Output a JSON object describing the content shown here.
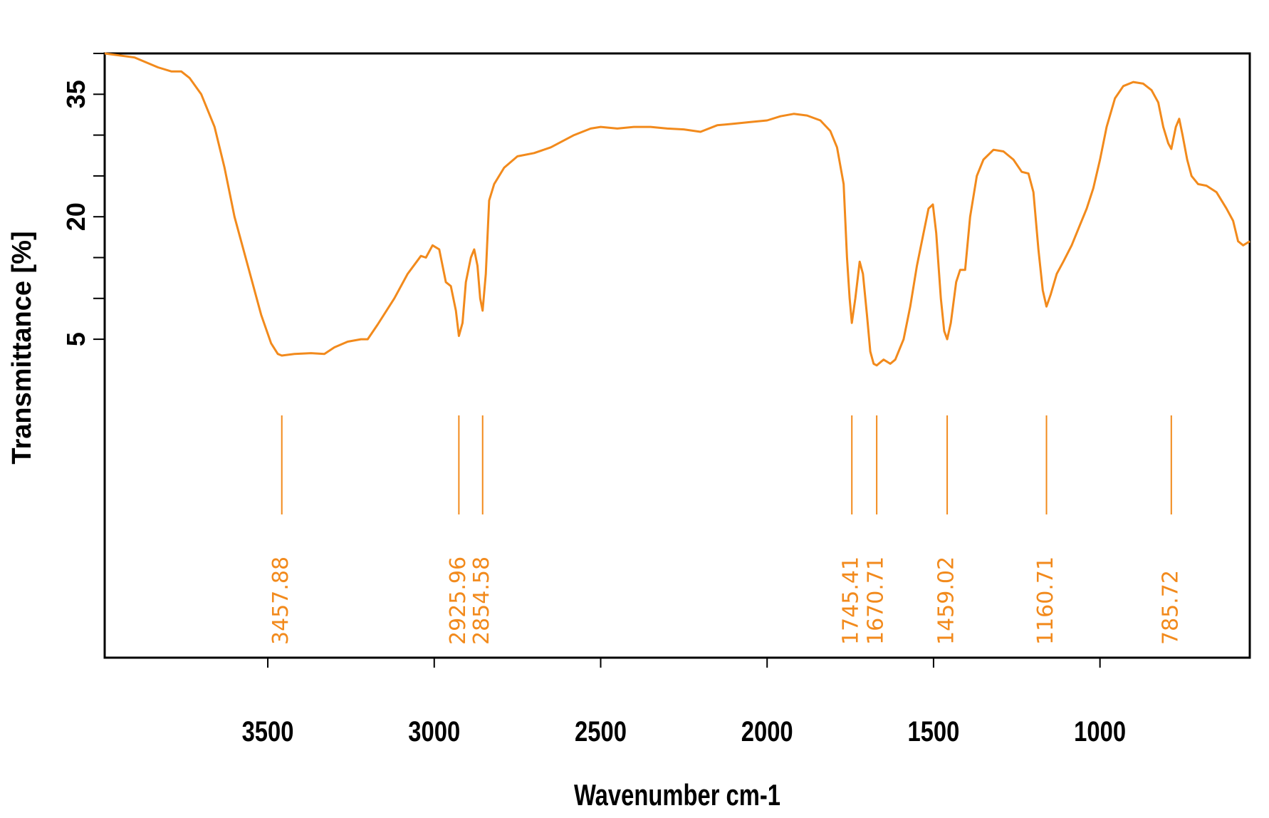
{
  "chart_data": {
    "type": "line",
    "title": "",
    "xlabel": "Wavenumber cm-1",
    "ylabel": "Transmittance [%]",
    "xlim": [
      3990,
      550
    ],
    "ylim": [
      -34,
      40
    ],
    "x_reversed": true,
    "grid": false,
    "line_color": "#f28a1c",
    "x_ticks": [
      {
        "value": 3500,
        "label": "3500"
      },
      {
        "value": 3000,
        "label": "3000"
      },
      {
        "value": 2500,
        "label": "2500"
      },
      {
        "value": 2000,
        "label": "2000"
      },
      {
        "value": 1500,
        "label": "1500"
      },
      {
        "value": 1000,
        "label": "1000"
      }
    ],
    "y_ticks": [
      {
        "value": 5,
        "label": "5"
      },
      {
        "value": 10,
        "label": ""
      },
      {
        "value": 15,
        "label": ""
      },
      {
        "value": 20,
        "label": "20"
      },
      {
        "value": 25,
        "label": ""
      },
      {
        "value": 30,
        "label": ""
      },
      {
        "value": 35,
        "label": "35"
      },
      {
        "value": 40,
        "label": ""
      }
    ],
    "series": [
      {
        "name": "",
        "points": [
          [
            3990,
            40.0
          ],
          [
            3900,
            39.5
          ],
          [
            3830,
            38.3
          ],
          [
            3790,
            37.8
          ],
          [
            3760,
            37.8
          ],
          [
            3735,
            37.0
          ],
          [
            3700,
            35.0
          ],
          [
            3660,
            31.0
          ],
          [
            3630,
            26.0
          ],
          [
            3600,
            20.0
          ],
          [
            3560,
            14.0
          ],
          [
            3520,
            8.0
          ],
          [
            3490,
            4.5
          ],
          [
            3470,
            3.2
          ],
          [
            3457.88,
            3.0
          ],
          [
            3420,
            3.2
          ],
          [
            3370,
            3.3
          ],
          [
            3330,
            3.2
          ],
          [
            3300,
            4.0
          ],
          [
            3260,
            4.7
          ],
          [
            3220,
            5.0
          ],
          [
            3200,
            5.0
          ],
          [
            3170,
            6.8
          ],
          [
            3120,
            10.0
          ],
          [
            3080,
            13.0
          ],
          [
            3040,
            15.2
          ],
          [
            3025,
            15.0
          ],
          [
            3005,
            16.5
          ],
          [
            2985,
            16.0
          ],
          [
            2965,
            12.0
          ],
          [
            2950,
            11.5
          ],
          [
            2935,
            8.5
          ],
          [
            2925.96,
            5.4
          ],
          [
            2915,
            7.0
          ],
          [
            2905,
            12.0
          ],
          [
            2890,
            15.0
          ],
          [
            2880,
            16.0
          ],
          [
            2870,
            14.0
          ],
          [
            2862,
            10.0
          ],
          [
            2854.58,
            8.5
          ],
          [
            2845,
            13.0
          ],
          [
            2835,
            22.0
          ],
          [
            2820,
            24.0
          ],
          [
            2790,
            26.0
          ],
          [
            2750,
            27.4
          ],
          [
            2700,
            27.8
          ],
          [
            2650,
            28.5
          ],
          [
            2580,
            30.0
          ],
          [
            2530,
            30.8
          ],
          [
            2500,
            31.0
          ],
          [
            2450,
            30.8
          ],
          [
            2400,
            31.0
          ],
          [
            2350,
            31.0
          ],
          [
            2300,
            30.8
          ],
          [
            2250,
            30.7
          ],
          [
            2200,
            30.4
          ],
          [
            2150,
            31.2
          ],
          [
            2100,
            31.4
          ],
          [
            2050,
            31.6
          ],
          [
            2000,
            31.8
          ],
          [
            1960,
            32.3
          ],
          [
            1920,
            32.6
          ],
          [
            1880,
            32.4
          ],
          [
            1840,
            31.8
          ],
          [
            1810,
            30.5
          ],
          [
            1790,
            28.5
          ],
          [
            1770,
            24.0
          ],
          [
            1760,
            15.0
          ],
          [
            1752,
            10.0
          ],
          [
            1745.41,
            7.0
          ],
          [
            1735,
            10.0
          ],
          [
            1722,
            14.5
          ],
          [
            1712,
            13.0
          ],
          [
            1700,
            8.0
          ],
          [
            1690,
            3.5
          ],
          [
            1680,
            2.0
          ],
          [
            1670.71,
            1.8
          ],
          [
            1650,
            2.5
          ],
          [
            1630,
            2.0
          ],
          [
            1615,
            2.5
          ],
          [
            1590,
            5.0
          ],
          [
            1570,
            9.0
          ],
          [
            1550,
            14.0
          ],
          [
            1530,
            18.0
          ],
          [
            1515,
            21.0
          ],
          [
            1502,
            21.5
          ],
          [
            1492,
            18.0
          ],
          [
            1478,
            10.0
          ],
          [
            1468,
            6.0
          ],
          [
            1459.02,
            5.0
          ],
          [
            1448,
            7.0
          ],
          [
            1432,
            12.0
          ],
          [
            1420,
            13.5
          ],
          [
            1405,
            13.5
          ],
          [
            1390,
            20.0
          ],
          [
            1370,
            25.0
          ],
          [
            1350,
            27.0
          ],
          [
            1320,
            28.2
          ],
          [
            1290,
            28.0
          ],
          [
            1260,
            27.0
          ],
          [
            1235,
            25.5
          ],
          [
            1215,
            25.3
          ],
          [
            1200,
            23.0
          ],
          [
            1185,
            16.0
          ],
          [
            1172,
            11.0
          ],
          [
            1160.71,
            9.0
          ],
          [
            1148,
            10.5
          ],
          [
            1130,
            13.0
          ],
          [
            1110,
            14.5
          ],
          [
            1085,
            16.5
          ],
          [
            1060,
            19.0
          ],
          [
            1040,
            21.0
          ],
          [
            1020,
            23.5
          ],
          [
            1000,
            27.0
          ],
          [
            980,
            31.0
          ],
          [
            955,
            34.5
          ],
          [
            930,
            36.0
          ],
          [
            900,
            36.5
          ],
          [
            870,
            36.3
          ],
          [
            845,
            35.5
          ],
          [
            825,
            34.0
          ],
          [
            810,
            31.0
          ],
          [
            795,
            29.0
          ],
          [
            785.72,
            28.3
          ],
          [
            772,
            31.0
          ],
          [
            762,
            32.0
          ],
          [
            752,
            30.0
          ],
          [
            738,
            27.0
          ],
          [
            725,
            25.0
          ],
          [
            705,
            24.0
          ],
          [
            680,
            23.8
          ],
          [
            650,
            23.0
          ],
          [
            620,
            21.0
          ],
          [
            600,
            19.5
          ],
          [
            585,
            17.0
          ],
          [
            570,
            16.5
          ],
          [
            550,
            17.0
          ]
        ]
      }
    ],
    "peaks": [
      {
        "x": 3457.88,
        "label": "3457.88"
      },
      {
        "x": 2925.96,
        "label": "2925.96"
      },
      {
        "x": 2854.58,
        "label": "2854.58"
      },
      {
        "x": 1745.41,
        "label": "1745.41"
      },
      {
        "x": 1670.71,
        "label": "1670.71"
      },
      {
        "x": 1459.02,
        "label": "1459.02"
      },
      {
        "x": 1160.71,
        "label": "1160.71"
      },
      {
        "x": 785.72,
        "label": "785.72"
      }
    ]
  }
}
